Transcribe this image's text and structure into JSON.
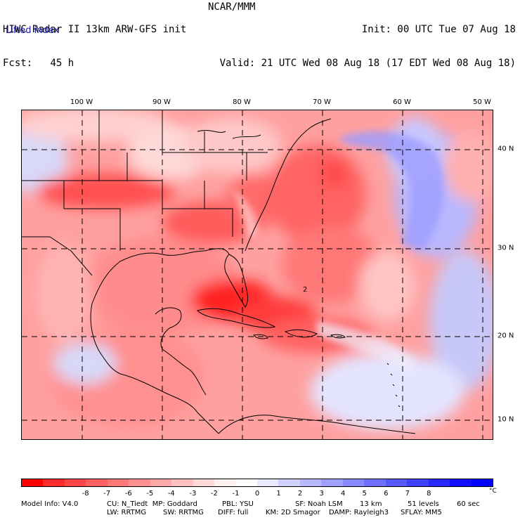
{
  "header": {
    "title": "HIWC Radar II 13km ARW-GFS init",
    "fcst_label": "Fcst:",
    "fcst_value": "45 h",
    "center": "NCAR/MMM",
    "init": "Init: 00 UTC Tue 07 Aug 18",
    "valid": "Valid: 21 UTC Wed 08 Aug 18 (17 EDT Wed 08 Aug 18)",
    "field": "Lifted index"
  },
  "map": {
    "lon_labels": [
      "100 W",
      "90 W",
      "80 W",
      "70 W",
      "60 W",
      "50 W"
    ],
    "lat_labels": [
      "40 N",
      "30 N",
      "20 N",
      "10 N"
    ],
    "colors": {
      "grid": "#000000",
      "coast": "#000000"
    }
  },
  "colorbar": {
    "colors": [
      "#ff0000",
      "#ff2a2a",
      "#ff4545",
      "#ff5f5f",
      "#ff7878",
      "#ff9090",
      "#ffa8a8",
      "#ffc0c0",
      "#ffd8d8",
      "#fff0f0",
      "#ffffff",
      "#e8e8ff",
      "#d0d0ff",
      "#b8b8ff",
      "#a0a0ff",
      "#8888ff",
      "#7070ff",
      "#5858ff",
      "#4040ff",
      "#2828ff",
      "#1010ff",
      "#0000ff"
    ],
    "ticks": [
      "-8",
      "-7",
      "-6",
      "-5",
      "-4",
      "-3",
      "-2",
      "-1",
      "0",
      "1",
      "2",
      "3",
      "4",
      "5",
      "6",
      "7",
      "8"
    ],
    "unit": "°C"
  },
  "model_info": {
    "line1": {
      "a": "Model Info: V4.0",
      "b": "CU: N_Tiedt  MP: Goddard",
      "c": "PBL: YSU",
      "d": "SF: Noah LSM",
      "e": "13 km",
      "f": "51 levels",
      "g": "60 sec"
    },
    "line2": {
      "a": "LW: RRTMG",
      "b": "SW: RRTMG",
      "c": "DIFF: full",
      "d": "KM: 2D Smagor",
      "e": "DAMP: Rayleigh3",
      "f": "SFLAY: MM5"
    }
  }
}
